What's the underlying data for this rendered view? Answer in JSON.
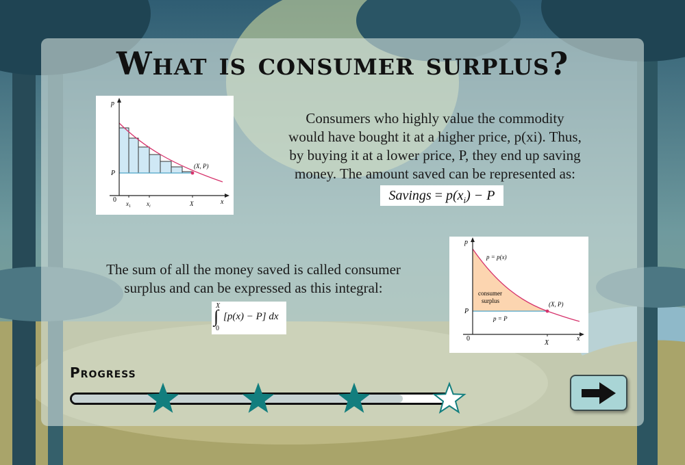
{
  "title": "What is consumer surplus?",
  "intro_lines": [
    "Consumers who highly value the commodity",
    "would have bought it at a higher price, p(xi). Thus,",
    "by buying it at a lower price, P, they end up saving",
    "money. The amount saved can be represented as:"
  ],
  "savings_formula": {
    "lhs": "Savings",
    "eq": "=",
    "p": "p(x",
    "sub": "i",
    "rest": ") − P"
  },
  "sum_lines": [
    "The sum of all the money saved is called consumer",
    "surplus and can be expressed as this integral:"
  ],
  "integral": {
    "upper": "X",
    "lower": "0",
    "body": "[p(x) − P] dx"
  },
  "figure_left": {
    "y_axis": "p",
    "x_axis": "x",
    "origin": "0",
    "p_level": "P",
    "ticks": [
      "x",
      "x",
      "X"
    ],
    "tick_subs": [
      "1",
      "i",
      ""
    ],
    "point_label": "(X, P)"
  },
  "figure_right": {
    "y_axis": "p",
    "x_axis": "x",
    "origin": "0",
    "p_level": "P",
    "x_tick": "X",
    "curve_label": "p = p(x)",
    "region_label_1": "consumer",
    "region_label_2": "surplus",
    "line_label": "p = P",
    "point_label": "(X, P)"
  },
  "progress": {
    "label": "Progress",
    "fill_fraction": 0.88,
    "stars_total": 4,
    "stars_earned": 3
  },
  "colors": {
    "star_earned": "#127e7e",
    "curve": "#d6336c",
    "bar_fill": "#cfe8f5",
    "surplus_fill": "#fcd5b0",
    "button_bg": "#a9d5d6"
  },
  "next_button_icon": "arrow-right-icon"
}
